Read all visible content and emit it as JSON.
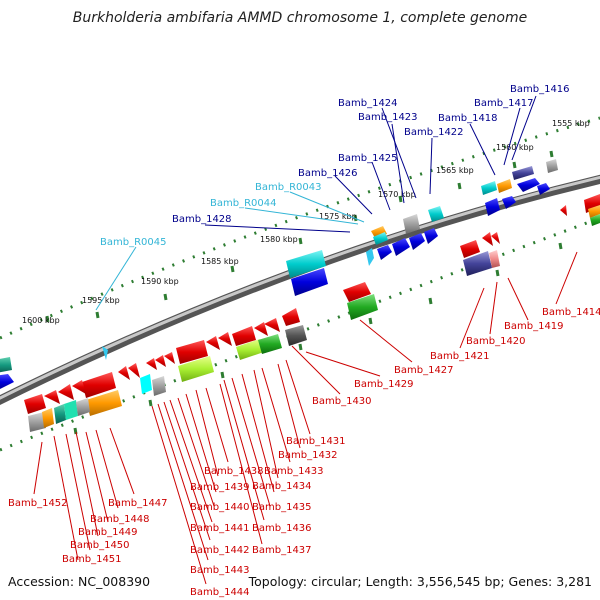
{
  "title": "Burkholderia ambifaria AMMD chromosome 1, complete genome",
  "accession": "Accession: NC_008390",
  "topology_info": "Topology: circular; Length: 3,556,545 bp; Genes: 3,281",
  "colors": {
    "blue_label": "#00008b",
    "cyan_label": "#33b5d6",
    "red_label": "#cc0000",
    "backbone": "#7a7a7a",
    "tick": "#2e7d32"
  },
  "kbp_labels": [
    {
      "text": "1555 kbp"
    },
    {
      "text": "1560 kbp"
    },
    {
      "text": "1565 kbp"
    },
    {
      "text": "1570 kbp"
    },
    {
      "text": "1575 kbp"
    },
    {
      "text": "1580 kbp"
    },
    {
      "text": "1585 kbp"
    },
    {
      "text": "1590 kbp"
    },
    {
      "text": "1595 kbp"
    },
    {
      "text": "1600 kbp"
    }
  ],
  "top_labels": [
    {
      "text": "Bamb_1416"
    },
    {
      "text": "Bamb_1417"
    },
    {
      "text": "Bamb_1418"
    },
    {
      "text": "Bamb_1422"
    },
    {
      "text": "Bamb_1423"
    },
    {
      "text": "Bamb_1424"
    },
    {
      "text": "Bamb_1425"
    },
    {
      "text": "Bamb_1426"
    },
    {
      "text": "Bamb_R0043"
    },
    {
      "text": "Bamb_R0044"
    },
    {
      "text": "Bamb_1428"
    },
    {
      "text": "Bamb_R0045"
    }
  ],
  "bottom_labels": [
    {
      "text": "Bamb_1414"
    },
    {
      "text": "Bamb_1419"
    },
    {
      "text": "Bamb_1420"
    },
    {
      "text": "Bamb_1421"
    },
    {
      "text": "Bamb_1427"
    },
    {
      "text": "Bamb_1429"
    },
    {
      "text": "Bamb_1430"
    },
    {
      "text": "Bamb_1431"
    },
    {
      "text": "Bamb_1432"
    },
    {
      "text": "Bamb_1433"
    },
    {
      "text": "Bamb_1434"
    },
    {
      "text": "Bamb_1435"
    },
    {
      "text": "Bamb_1436"
    },
    {
      "text": "Bamb_1437"
    },
    {
      "text": "Bamb_1438"
    },
    {
      "text": "Bamb_1439"
    },
    {
      "text": "Bamb_1440"
    },
    {
      "text": "Bamb_1441"
    },
    {
      "text": "Bamb_1442"
    },
    {
      "text": "Bamb_1443"
    },
    {
      "text": "Bamb_1444"
    },
    {
      "text": "Bamb_1447"
    },
    {
      "text": "Bamb_1448"
    },
    {
      "text": "Bamb_1449"
    },
    {
      "text": "Bamb_1450"
    },
    {
      "text": "Bamb_1451"
    },
    {
      "text": "Bamb_1452"
    }
  ]
}
